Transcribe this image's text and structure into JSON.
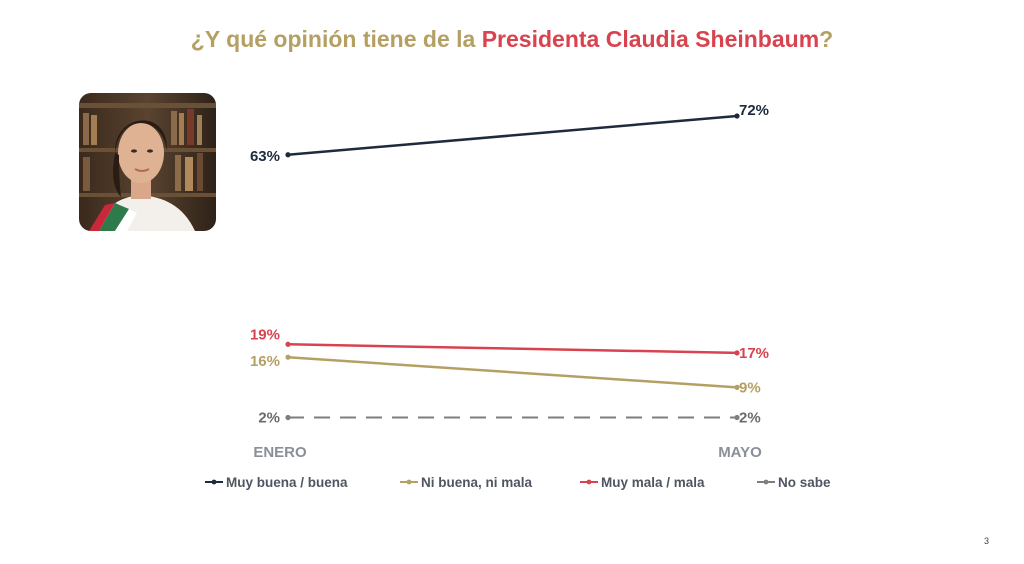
{
  "title": {
    "prefix": "¿Y qué opinión tiene de la ",
    "highlight": "Presidenta Claudia Sheinbaum",
    "suffix": "?"
  },
  "page_number": "3",
  "colors": {
    "title": "#b5a064",
    "highlight": "#d8434f",
    "axis_label": "#8a8f99"
  },
  "chart_data": {
    "type": "line",
    "title": "¿Y qué opinión tiene de la Presidenta Claudia Sheinbaum?",
    "categories": [
      "ENERO",
      "MAYO"
    ],
    "ylim": [
      0,
      80
    ],
    "grid": false,
    "legend": "bottom",
    "series": [
      {
        "name": "Muy buena / buena",
        "values": [
          63,
          72
        ],
        "labels": [
          "63%",
          "72%"
        ],
        "color": "#1d2b3d",
        "dash": false
      },
      {
        "name": "Ni buena, ni mala",
        "values": [
          16,
          9
        ],
        "labels": [
          "16%",
          "9%"
        ],
        "color": "#b5a064",
        "dash": false
      },
      {
        "name": "Muy mala / mala",
        "values": [
          19,
          17
        ],
        "labels": [
          "19%",
          "17%"
        ],
        "color": "#d8434f",
        "dash": false
      },
      {
        "name": "No sabe",
        "values": [
          2,
          2
        ],
        "labels": [
          "2%",
          "2%"
        ],
        "color": "#7e7e7e",
        "dash": true
      }
    ]
  }
}
